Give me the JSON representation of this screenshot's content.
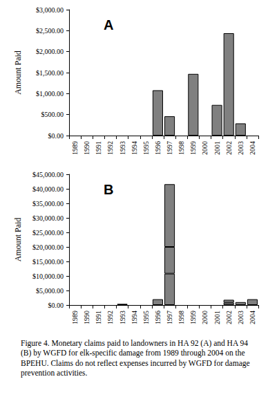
{
  "chart_data": [
    {
      "type": "bar",
      "annotation": "A",
      "ylabel": "Amount Paid",
      "categories": [
        "1989",
        "1990",
        "1991",
        "1992",
        "1993",
        "1994",
        "1995",
        "1996",
        "1997",
        "1998",
        "1999",
        "2000",
        "2001",
        "2002",
        "2003",
        "2004"
      ],
      "series": [
        {
          "color": "#808080",
          "values": [
            null,
            null,
            null,
            null,
            null,
            null,
            null,
            1080,
            460,
            null,
            1470,
            null,
            730,
            2440,
            290,
            null
          ]
        }
      ],
      "ylim": [
        0,
        3000
      ],
      "yticks": [
        {
          "value": 0,
          "label": "$0.00"
        },
        {
          "value": 500,
          "label": "$500.00"
        },
        {
          "value": 1000,
          "label": "$1,000.00"
        },
        {
          "value": 1500,
          "label": "$1,500.00"
        },
        {
          "value": 2000,
          "label": "$2,000.00"
        },
        {
          "value": 2500,
          "label": "$2,500.00"
        },
        {
          "value": 3000,
          "label": "$3,000.00"
        }
      ],
      "grid": false
    },
    {
      "type": "bar",
      "annotation": "B",
      "ylabel": "Amount Paid",
      "stacked": true,
      "categories": [
        "1989",
        "1990",
        "1991",
        "1992",
        "1993",
        "1994",
        "1995",
        "1996",
        "1997",
        "1998",
        "1999",
        "2000",
        "2001",
        "2002",
        "2003",
        "2004"
      ],
      "series": [
        {
          "color": "#808080",
          "values": [
            null,
            null,
            null,
            null,
            400,
            null,
            null,
            2000,
            10800,
            null,
            null,
            null,
            null,
            800,
            1000,
            2000
          ]
        },
        {
          "color": "#808080",
          "values": [
            null,
            null,
            null,
            null,
            null,
            null,
            null,
            null,
            9200,
            null,
            null,
            null,
            null,
            1000,
            null,
            null
          ]
        },
        {
          "color": "#808080",
          "values": [
            null,
            null,
            null,
            null,
            null,
            null,
            null,
            null,
            21600,
            null,
            null,
            null,
            null,
            null,
            null,
            null
          ]
        }
      ],
      "ylim": [
        0,
        45000
      ],
      "yticks": [
        {
          "value": 0,
          "label": "$0.00"
        },
        {
          "value": 5000,
          "label": "$5,000.00"
        },
        {
          "value": 10000,
          "label": "$10,000.00"
        },
        {
          "value": 15000,
          "label": "$15,000.00"
        },
        {
          "value": 20000,
          "label": "$20,000.00"
        },
        {
          "value": 25000,
          "label": "$25,000.00"
        },
        {
          "value": 30000,
          "label": "$30,000.00"
        },
        {
          "value": 35000,
          "label": "$35,000.00"
        },
        {
          "value": 40000,
          "label": "$40,000.00"
        },
        {
          "value": 45000,
          "label": "$45,000.00"
        }
      ],
      "grid": false
    }
  ],
  "caption": "Figure 4.  Monetary claims paid to landowners in HA 92 (A) and HA 94 (B) by WGFD for elk-specific damage from 1989 through 2004 on the BPEHU.  Claims do not reflect expenses incurred by WGFD for damage prevention activities."
}
